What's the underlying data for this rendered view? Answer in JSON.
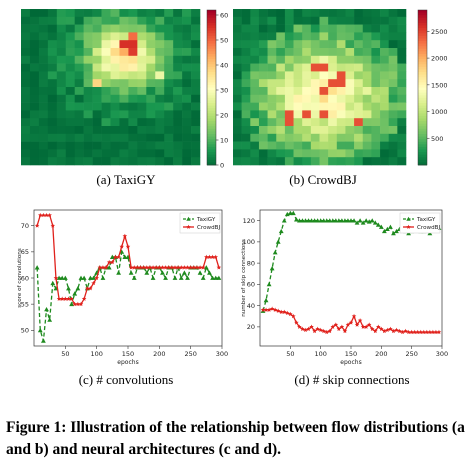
{
  "subfigures": {
    "a": "(a)  TaxiGY",
    "b": "(b)  CrowdBJ",
    "c": "(c)  # convolutions",
    "d": "(d)  # skip connections"
  },
  "caption": "Figure 1: Illustration of the relationship between flow distributions (a and b) and neural architectures (c and d).",
  "colors": {
    "taxigy": "#1e8a1e",
    "crowdbj": "#e0211c"
  },
  "chart_data": [
    {
      "type": "heatmap",
      "id": "taxigy-heatmap",
      "colormap": "RdYlGn_r",
      "colorbar_ticks": [
        0,
        10,
        20,
        30,
        40,
        50,
        60
      ],
      "range": [
        0,
        62
      ],
      "grid": "20x20"
    },
    {
      "type": "heatmap",
      "id": "crowdbj-heatmap",
      "colormap": "RdYlGn_r",
      "colorbar_ticks": [
        500,
        1000,
        1500,
        2000,
        2500
      ],
      "range": [
        0,
        2900
      ],
      "grid": "20x20"
    },
    {
      "type": "line",
      "id": "convolutions",
      "xlabel": "epochs",
      "ylabel": "score of convolutions",
      "xlim": [
        0,
        300
      ],
      "ylim": [
        47,
        73
      ],
      "xticks": [
        50,
        100,
        150,
        200,
        250,
        300
      ],
      "yticks": [
        50,
        55,
        60,
        65,
        70
      ],
      "legend_position": "upper-right",
      "series": [
        {
          "name": "TaxiGY",
          "style": "dashed-triangle",
          "x": [
            5,
            10,
            15,
            20,
            25,
            30,
            35,
            40,
            45,
            50,
            55,
            60,
            65,
            70,
            75,
            80,
            85,
            90,
            95,
            100,
            105,
            110,
            115,
            120,
            125,
            130,
            135,
            140,
            145,
            150,
            155,
            160,
            165,
            170,
            175,
            180,
            185,
            190,
            195,
            200,
            205,
            210,
            215,
            220,
            225,
            230,
            235,
            240,
            245,
            250,
            255,
            260,
            265,
            270,
            275,
            280,
            285,
            290,
            295
          ],
          "y": [
            62,
            50,
            48,
            54,
            52,
            59,
            58,
            60,
            60,
            60,
            58,
            55,
            57,
            58,
            60,
            60,
            58,
            60,
            60,
            61,
            62,
            60,
            62,
            62,
            64,
            64,
            61,
            65,
            64,
            64,
            61,
            60,
            62,
            62,
            62,
            61,
            62,
            60,
            62,
            62,
            61,
            60,
            62,
            62,
            60,
            62,
            60,
            61,
            60,
            62,
            62,
            62,
            61,
            60,
            62,
            61,
            60,
            60,
            60
          ]
        },
        {
          "name": "CrowdBJ",
          "style": "solid-star",
          "x": [
            5,
            10,
            15,
            20,
            25,
            30,
            35,
            40,
            45,
            50,
            55,
            60,
            65,
            70,
            75,
            80,
            85,
            90,
            95,
            100,
            105,
            110,
            115,
            120,
            125,
            130,
            135,
            140,
            145,
            150,
            155,
            160,
            165,
            170,
            175,
            180,
            185,
            190,
            195,
            200,
            205,
            210,
            215,
            220,
            225,
            230,
            235,
            240,
            245,
            250,
            255,
            260,
            265,
            270,
            275,
            280,
            285,
            290,
            295
          ],
          "y": [
            70,
            72,
            72,
            72,
            72,
            70,
            60,
            56,
            56,
            56,
            56,
            56,
            55,
            55,
            55,
            56,
            58,
            58,
            59,
            60,
            62,
            62,
            62,
            63,
            63,
            64,
            64,
            66,
            68,
            66,
            62,
            62,
            62,
            62,
            62,
            62,
            62,
            62,
            62,
            62,
            62,
            62,
            62,
            62,
            62,
            62,
            62,
            62,
            62,
            62,
            62,
            62,
            62,
            62,
            64,
            64,
            64,
            64,
            62
          ]
        }
      ]
    },
    {
      "type": "line",
      "id": "skip-connections",
      "xlabel": "epochs",
      "ylabel": "number of skip connections",
      "xlim": [
        0,
        300
      ],
      "ylim": [
        2,
        130
      ],
      "xticks": [
        50,
        100,
        150,
        200,
        250,
        300
      ],
      "yticks": [
        20,
        40,
        60,
        80,
        100,
        120
      ],
      "legend_position": "upper-right",
      "series": [
        {
          "name": "TaxiGY",
          "style": "dashed-triangle",
          "x": [
            5,
            10,
            15,
            20,
            25,
            30,
            35,
            40,
            45,
            50,
            55,
            60,
            65,
            70,
            75,
            80,
            85,
            90,
            95,
            100,
            105,
            110,
            115,
            120,
            125,
            130,
            135,
            140,
            145,
            150,
            155,
            160,
            165,
            170,
            175,
            180,
            185,
            190,
            195,
            200,
            205,
            210,
            215,
            220,
            225,
            230,
            235,
            240,
            245,
            250,
            255,
            260,
            265,
            270,
            275,
            280,
            285,
            290,
            295
          ],
          "y": [
            35,
            45,
            60,
            75,
            90,
            100,
            110,
            120,
            126,
            127,
            127,
            121,
            120,
            120,
            120,
            120,
            120,
            120,
            120,
            120,
            120,
            120,
            120,
            120,
            120,
            120,
            120,
            120,
            120,
            120,
            120,
            118,
            120,
            118,
            120,
            119,
            120,
            118,
            116,
            114,
            110,
            112,
            114,
            108,
            110,
            112,
            115,
            110,
            108,
            110,
            112,
            114,
            110,
            110,
            114,
            108,
            112,
            115,
            113
          ]
        },
        {
          "name": "CrowdBJ",
          "style": "solid-star",
          "x": [
            5,
            10,
            15,
            20,
            25,
            30,
            35,
            40,
            45,
            50,
            55,
            60,
            65,
            70,
            75,
            80,
            85,
            90,
            95,
            100,
            105,
            110,
            115,
            120,
            125,
            130,
            135,
            140,
            145,
            150,
            155,
            160,
            165,
            170,
            175,
            180,
            185,
            190,
            195,
            200,
            205,
            210,
            215,
            220,
            225,
            230,
            235,
            240,
            245,
            250,
            255,
            260,
            265,
            270,
            275,
            280,
            285,
            290,
            295
          ],
          "y": [
            36,
            36,
            36,
            37,
            36,
            35,
            34,
            34,
            33,
            32,
            30,
            24,
            20,
            18,
            17,
            18,
            20,
            16,
            18,
            17,
            16,
            15,
            16,
            20,
            22,
            18,
            20,
            16,
            22,
            24,
            30,
            22,
            26,
            20,
            20,
            22,
            18,
            16,
            20,
            18,
            16,
            17,
            18,
            16,
            17,
            16,
            15,
            16,
            15,
            15,
            15,
            15,
            15,
            15,
            15,
            15,
            15,
            15,
            15
          ]
        }
      ]
    }
  ]
}
